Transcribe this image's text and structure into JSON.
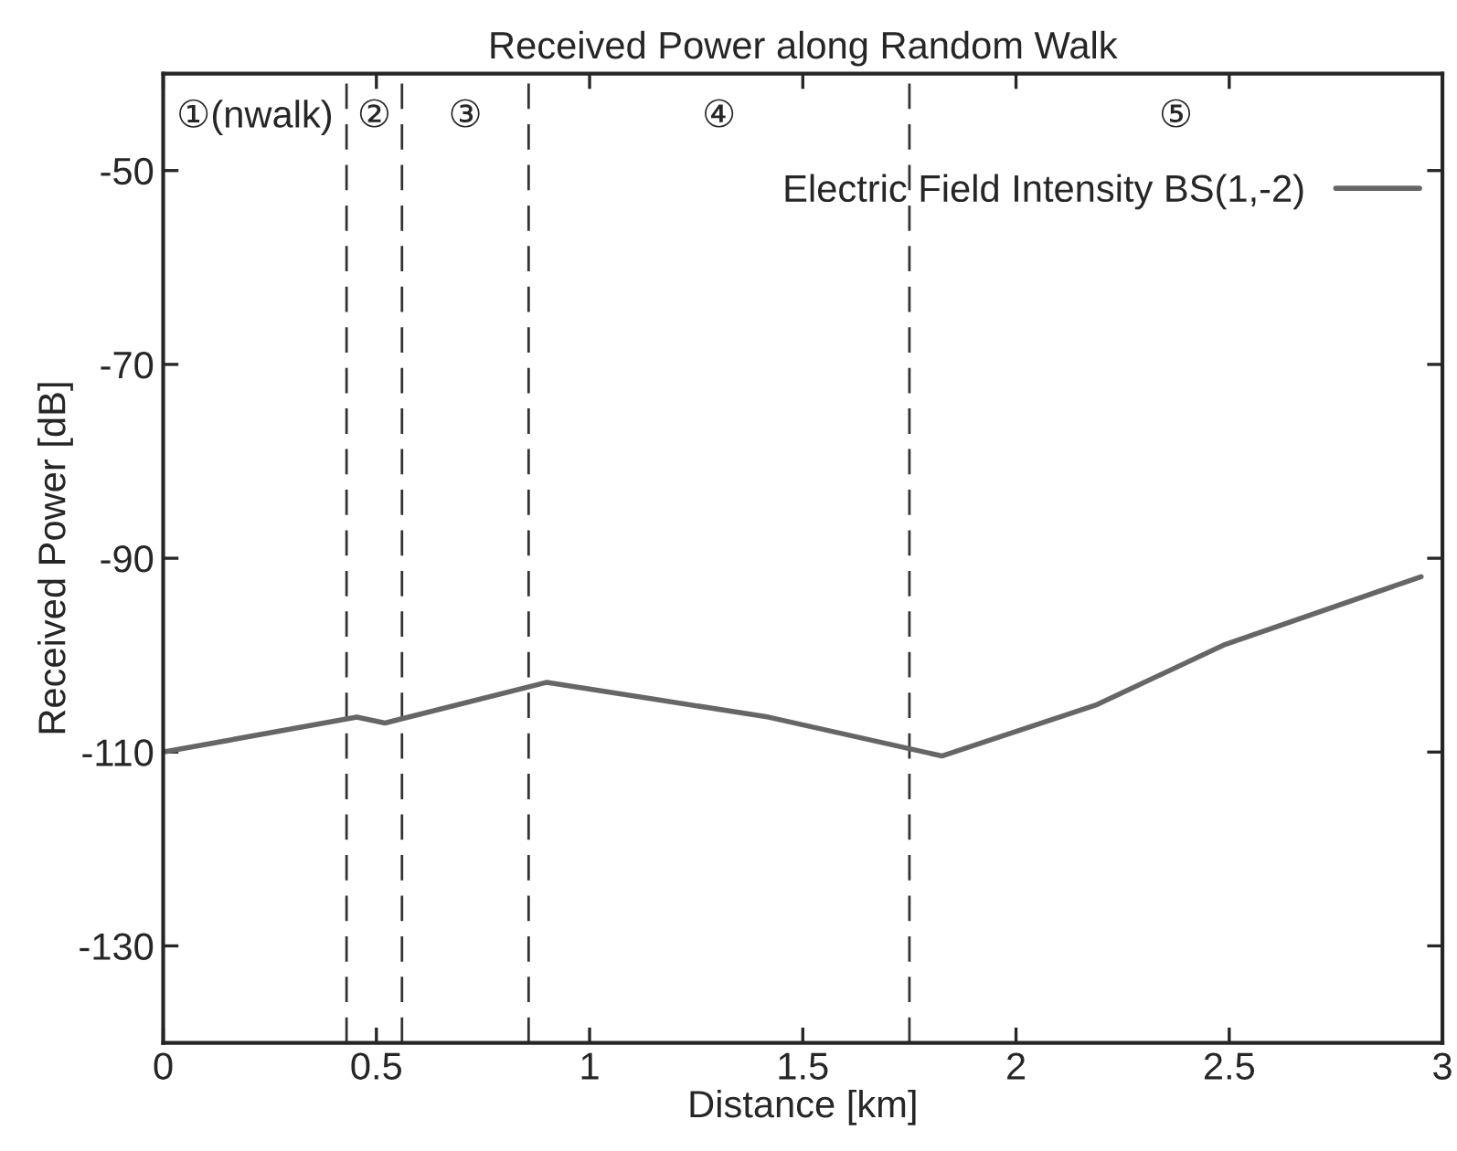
{
  "chart_data": {
    "type": "line",
    "title": "Received Power along Random Walk",
    "xlabel": "Distance [km]",
    "ylabel": "Received Power [dB]",
    "x": [
      0,
      0.454,
      0.52,
      0.9,
      1.42,
      1.826,
      2.19,
      2.49,
      2.95
    ],
    "series": [
      {
        "name": "Electric Field Intensity BS(1,-2)",
        "color": "#666666",
        "values": [
          -110,
          -106.4,
          -107,
          -102.8,
          -106.4,
          -110.4,
          -105.1,
          -98.9,
          -91.9
        ]
      }
    ],
    "xlim": [
      0,
      3
    ],
    "xticks": [
      0,
      0.5,
      1,
      1.5,
      2,
      2.5,
      3
    ],
    "ylim": [
      -140,
      -40
    ],
    "yticks": [
      -50,
      -70,
      -90,
      -110,
      -130
    ],
    "ref_lines": [
      {
        "axis": "x",
        "value": 0.43,
        "color": "#333333",
        "line_style": "dashed"
      },
      {
        "axis": "x",
        "value": 0.56,
        "color": "#333333",
        "line_style": "dashed"
      },
      {
        "axis": "x",
        "value": 0.857,
        "color": "#333333",
        "line_style": "dashed"
      },
      {
        "axis": "x",
        "value": 1.75,
        "color": "#333333",
        "line_style": "dashed"
      }
    ],
    "annotations": [
      "①(nwalk)",
      "②",
      "③",
      "④",
      "⑤"
    ],
    "legend": "top right",
    "grid": false,
    "marker": "none",
    "line_style": "solid"
  }
}
